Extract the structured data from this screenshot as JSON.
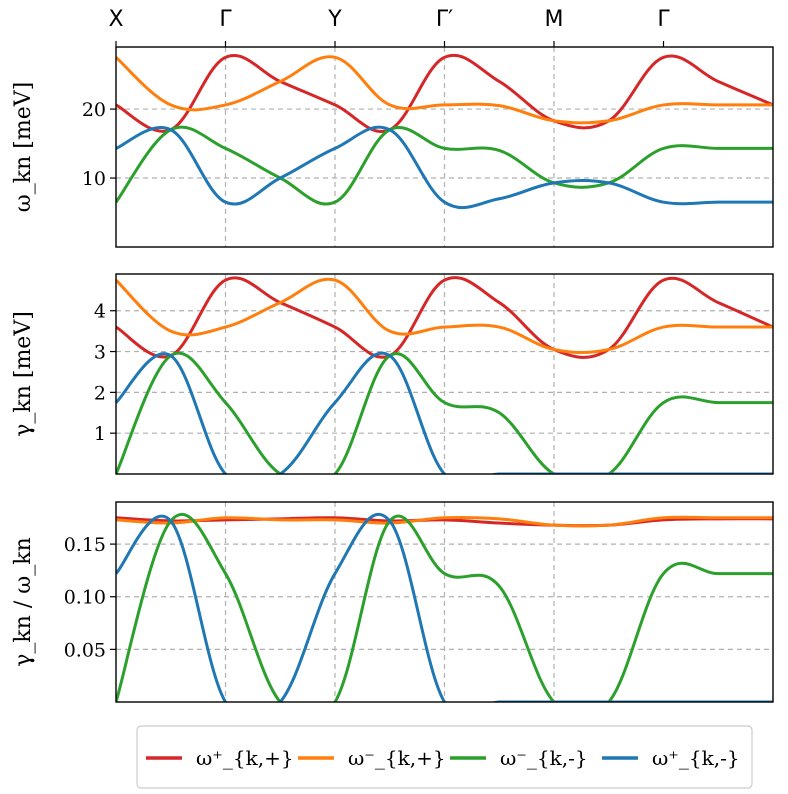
{
  "chart_data": {
    "type": "line",
    "x_high_symmetry_points": [
      "X",
      "Γ",
      "Y",
      "Γ′",
      "M",
      "Γ"
    ],
    "x_range": [
      0,
      6
    ],
    "panels": [
      {
        "id": "omega",
        "ylabel": "ω_kn [meV]",
        "ylim": [
          0,
          29
        ],
        "yticks": [
          10,
          20
        ],
        "yticklabels": [
          "10",
          "20"
        ],
        "grid": true,
        "series": [
          {
            "name": "ω⁺_{k,+}",
            "color": "#d62728",
            "x": [
              0,
              0.5,
              1,
              1.5,
              2,
              2.5,
              3,
              3.5,
              4,
              4.5,
              5,
              5.5,
              6
            ],
            "y": [
              20.6,
              17.0,
              27.5,
              24.0,
              20.6,
              17.0,
              27.5,
              24.0,
              18.3,
              18.3,
              27.5,
              24.0,
              20.6
            ]
          },
          {
            "name": "ω⁻_{k,+}",
            "color": "#ff7f0e",
            "x": [
              0,
              0.5,
              1,
              1.5,
              2,
              2.5,
              3,
              3.5,
              4,
              4.5,
              5,
              5.5,
              6
            ],
            "y": [
              27.5,
              20.6,
              20.6,
              24.0,
              27.5,
              20.6,
              20.6,
              20.5,
              18.3,
              18.3,
              20.6,
              20.6,
              20.6
            ]
          },
          {
            "name": "ω⁻_{k,-}",
            "color": "#2ca02c",
            "x": [
              0,
              0.5,
              1,
              1.5,
              2,
              2.5,
              3,
              3.5,
              4,
              4.5,
              5,
              5.5,
              6
            ],
            "y": [
              6.5,
              17.0,
              14.3,
              10.0,
              6.5,
              17.0,
              14.3,
              14.0,
              9.3,
              9.3,
              14.3,
              14.3,
              14.3
            ]
          },
          {
            "name": "ω⁺_{k,-}",
            "color": "#1f77b4",
            "x": [
              0,
              0.5,
              1,
              1.5,
              2,
              2.5,
              3,
              3.5,
              4,
              4.5,
              5,
              5.5,
              6
            ],
            "y": [
              14.3,
              17.0,
              6.5,
              10.0,
              14.3,
              17.0,
              6.5,
              7.0,
              9.3,
              9.3,
              6.5,
              6.5,
              6.5
            ]
          }
        ]
      },
      {
        "id": "gamma",
        "ylabel": "γ_kn [meV]",
        "ylim": [
          0,
          4.9
        ],
        "yticks": [
          1,
          2,
          3,
          4
        ],
        "yticklabels": [
          "1",
          "2",
          "3",
          "4"
        ],
        "grid": true,
        "series": [
          {
            "name": "ω⁺_{k,+}",
            "color": "#d62728",
            "x": [
              0,
              0.5,
              1,
              1.5,
              2,
              2.5,
              3,
              3.5,
              4,
              4.5,
              5,
              5.5,
              6
            ],
            "y": [
              3.6,
              2.9,
              4.75,
              4.2,
              3.6,
              2.9,
              4.75,
              4.2,
              3.05,
              3.05,
              4.75,
              4.2,
              3.6
            ]
          },
          {
            "name": "ω⁻_{k,+}",
            "color": "#ff7f0e",
            "x": [
              0,
              0.5,
              1,
              1.5,
              2,
              2.5,
              3,
              3.5,
              4,
              4.5,
              5,
              5.5,
              6
            ],
            "y": [
              4.75,
              3.5,
              3.6,
              4.2,
              4.75,
              3.5,
              3.6,
              3.6,
              3.05,
              3.05,
              3.6,
              3.6,
              3.6
            ]
          },
          {
            "name": "ω⁻_{k,-}",
            "color": "#2ca02c",
            "x": [
              0,
              0.5,
              1,
              1.5,
              2,
              2.5,
              3,
              3.5,
              4,
              4.5,
              5,
              5.5,
              6
            ],
            "y": [
              0,
              2.9,
              1.75,
              0,
              0,
              2.9,
              1.75,
              1.5,
              0,
              0,
              1.75,
              1.75,
              1.75
            ]
          },
          {
            "name": "ω⁺_{k,-}",
            "color": "#1f77b4",
            "x": [
              0,
              0.5,
              1,
              1.5,
              2,
              2.5,
              3,
              3.5,
              4,
              4.5,
              5,
              5.5,
              6
            ],
            "y": [
              1.75,
              2.9,
              0,
              0,
              1.75,
              2.9,
              0,
              0,
              0,
              0,
              0,
              0,
              0
            ]
          }
        ]
      },
      {
        "id": "ratio",
        "ylabel": "γ_kn / ω_kn",
        "ylim": [
          0,
          0.19
        ],
        "yticks": [
          0.05,
          0.1,
          0.15
        ],
        "yticklabels": [
          "0.05",
          "0.10",
          "0.15"
        ],
        "grid": true,
        "series": [
          {
            "name": "ω⁺_{k,+}",
            "color": "#d62728",
            "x": [
              0,
              0.5,
              1,
              1.5,
              2,
              2.5,
              3,
              3.5,
              4,
              4.5,
              5,
              5.5,
              6
            ],
            "y": [
              0.175,
              0.172,
              0.173,
              0.174,
              0.175,
              0.172,
              0.173,
              0.17,
              0.168,
              0.168,
              0.173,
              0.174,
              0.174
            ]
          },
          {
            "name": "ω⁻_{k,+}",
            "color": "#ff7f0e",
            "x": [
              0,
              0.5,
              1,
              1.5,
              2,
              2.5,
              3,
              3.5,
              4,
              4.5,
              5,
              5.5,
              6
            ],
            "y": [
              0.173,
              0.17,
              0.175,
              0.173,
              0.173,
              0.17,
              0.175,
              0.174,
              0.168,
              0.168,
              0.175,
              0.175,
              0.175
            ]
          },
          {
            "name": "ω⁻_{k,-}",
            "color": "#2ca02c",
            "x": [
              0,
              0.5,
              1,
              1.5,
              2,
              2.5,
              3,
              3.5,
              4,
              4.5,
              5,
              5.5,
              6
            ],
            "y": [
              0,
              0.172,
              0.122,
              0,
              0,
              0.172,
              0.122,
              0.11,
              0,
              0,
              0.122,
              0.122,
              0.122
            ]
          },
          {
            "name": "ω⁺_{k,-}",
            "color": "#1f77b4",
            "x": [
              0,
              0.5,
              1,
              1.5,
              2,
              2.5,
              3,
              3.5,
              4,
              4.5,
              5,
              5.5,
              6
            ],
            "y": [
              0.122,
              0.172,
              0,
              0,
              0.122,
              0.172,
              0,
              0,
              0,
              0,
              0,
              0,
              0
            ]
          }
        ]
      }
    ],
    "legend": {
      "placement": "bottom",
      "entries": [
        {
          "label": "ω⁺_{k,+}",
          "color": "#d62728"
        },
        {
          "label": "ω⁻_{k,+}",
          "color": "#ff7f0e"
        },
        {
          "label": "ω⁻_{k,-}",
          "color": "#2ca02c"
        },
        {
          "label": "ω⁺_{k,-}",
          "color": "#1f77b4"
        }
      ]
    }
  }
}
